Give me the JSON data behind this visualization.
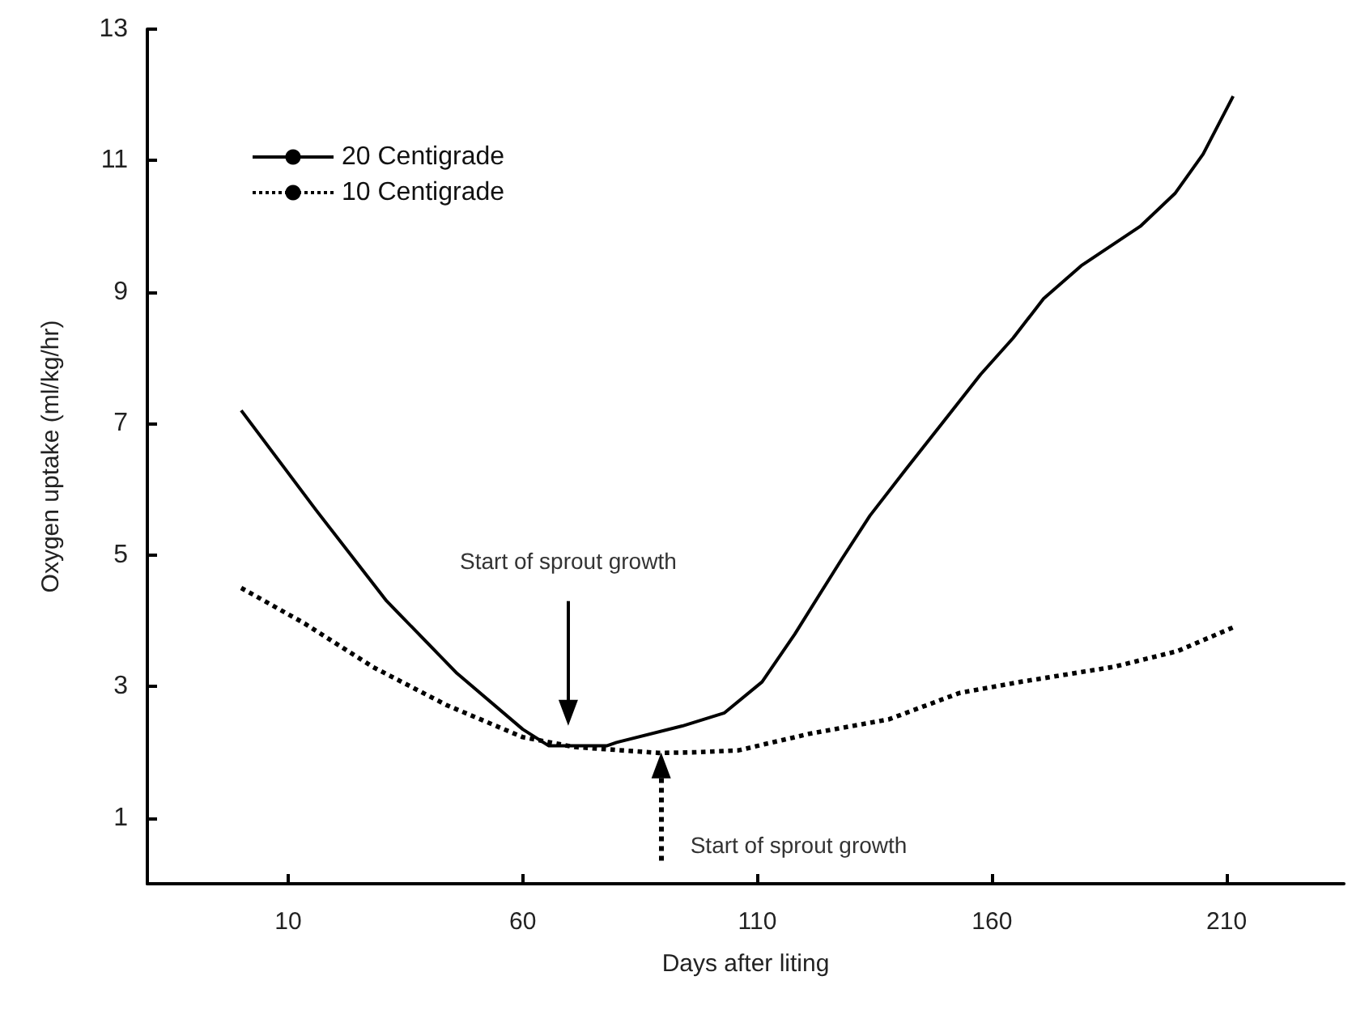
{
  "chart_data": {
    "type": "line",
    "xlabel": "Days after liting",
    "ylabel": "Oxygen uptake (ml/kg/hr)",
    "xlim": [
      -20,
      235
    ],
    "xticks": [
      10,
      60,
      110,
      160,
      210
    ],
    "ylim": [
      0,
      13
    ],
    "yticks": [
      1,
      3,
      5,
      7,
      9,
      11,
      13
    ],
    "grid": false,
    "legend": "top left",
    "marker": "none",
    "series": [
      {
        "name": "20 Centigrade",
        "color": "#000000",
        "line_style": "solid",
        "x": [
          0,
          16,
          31,
          46,
          60,
          65.5,
          78,
          80,
          94,
          103,
          111,
          118,
          128,
          134,
          141.6,
          150,
          157.6,
          164.5,
          171,
          179,
          191.6,
          199,
          205,
          211.4
        ],
        "values": [
          7.2,
          5.68,
          4.3,
          3.2,
          2.35,
          2.1,
          2.1,
          2.15,
          2.4,
          2.6,
          3.07,
          3.8,
          4.94,
          5.6,
          6.3,
          7.06,
          7.75,
          8.3,
          8.9,
          9.4,
          10.0,
          10.5,
          11.1,
          11.98
        ]
      },
      {
        "name": "10 Centigrade",
        "color": "#000000",
        "line_style": "dotted",
        "x": [
          0,
          13.5,
          28,
          43.7,
          60,
          71,
          89,
          97,
          106,
          121,
          138,
          153,
          166,
          186,
          199.6,
          211.4
        ],
        "values": [
          4.5,
          3.96,
          3.3,
          2.72,
          2.23,
          2.08,
          1.99,
          2.0,
          2.03,
          2.28,
          2.5,
          2.9,
          3.07,
          3.3,
          3.54,
          3.9
        ]
      }
    ],
    "annotations": [
      {
        "text": "Start of sprout growth",
        "x": 69.7,
        "y": 2.6
      },
      {
        "text": "Start of sprout growth",
        "x": 89.5,
        "y": 1.8
      }
    ]
  }
}
